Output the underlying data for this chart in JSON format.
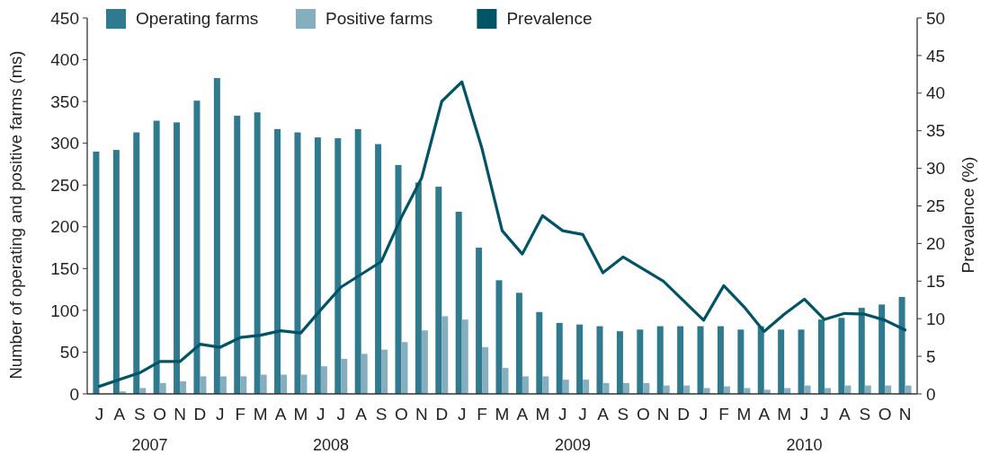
{
  "chart_data": {
    "type": "bar",
    "ylabel": "Number of operating and positive farms (ms)",
    "y2label": "Prevalence (%)",
    "categories": [
      "J",
      "A",
      "S",
      "O",
      "N",
      "D",
      "J",
      "F",
      "M",
      "A",
      "M",
      "J",
      "J",
      "A",
      "S",
      "O",
      "N",
      "D",
      "J",
      "F",
      "M",
      "A",
      "M",
      "J",
      "J",
      "A",
      "S",
      "O",
      "N",
      "D",
      "J",
      "F",
      "M",
      "A",
      "M",
      "J",
      "J",
      "A",
      "S",
      "O",
      "N"
    ],
    "series": [
      {
        "name": "Operating farms",
        "color": "#2f7a8f",
        "values": [
          290,
          292,
          313,
          327,
          325,
          351,
          378,
          333,
          337,
          317,
          313,
          307,
          306,
          317,
          299,
          274,
          253,
          248,
          218,
          175,
          136,
          121,
          98,
          85,
          83,
          81,
          75,
          77,
          81,
          81,
          81,
          81,
          77,
          81,
          77,
          77,
          89,
          91,
          103,
          107,
          116
        ]
      },
      {
        "name": "Positive farms",
        "color": "#85afbf",
        "values": [
          null,
          3,
          7,
          13,
          15,
          21,
          21,
          21,
          23,
          23,
          23,
          33,
          42,
          48,
          53,
          62,
          76,
          93,
          89,
          56,
          31,
          21,
          21,
          17,
          17,
          13,
          13,
          13,
          10,
          10,
          7,
          9,
          7,
          5,
          7,
          10,
          7,
          10,
          10,
          10,
          10
        ]
      },
      {
        "name": "Prevalence",
        "type": "line",
        "axis": "y2",
        "color": "#005466",
        "values": [
          1.0,
          1.9,
          2.8,
          4.3,
          4.3,
          6.6,
          6.2,
          7.5,
          7.8,
          8.4,
          8.1,
          11.2,
          14.2,
          15.9,
          17.6,
          23.5,
          28.7,
          38.9,
          41.5,
          32.6,
          21.7,
          18.6,
          23.7,
          21.7,
          21.2,
          16.1,
          18.2,
          16.6,
          15.0,
          12.4,
          9.8,
          14.4,
          11.6,
          8.3,
          10.6,
          12.6,
          9.9,
          10.7,
          10.6,
          9.8,
          8.5
        ]
      }
    ],
    "ylim": [
      0,
      450
    ],
    "yticks": [
      0,
      50,
      100,
      150,
      200,
      250,
      300,
      350,
      400,
      450
    ],
    "y2lim": [
      0,
      50
    ],
    "y2ticks": [
      0,
      5,
      10,
      15,
      20,
      25,
      30,
      35,
      40,
      45,
      50
    ],
    "annotations": [
      "2007",
      "2008",
      "2009",
      "2010"
    ],
    "legend": "top left",
    "grid": false,
    "marker": "none",
    "line_style": "solid"
  }
}
